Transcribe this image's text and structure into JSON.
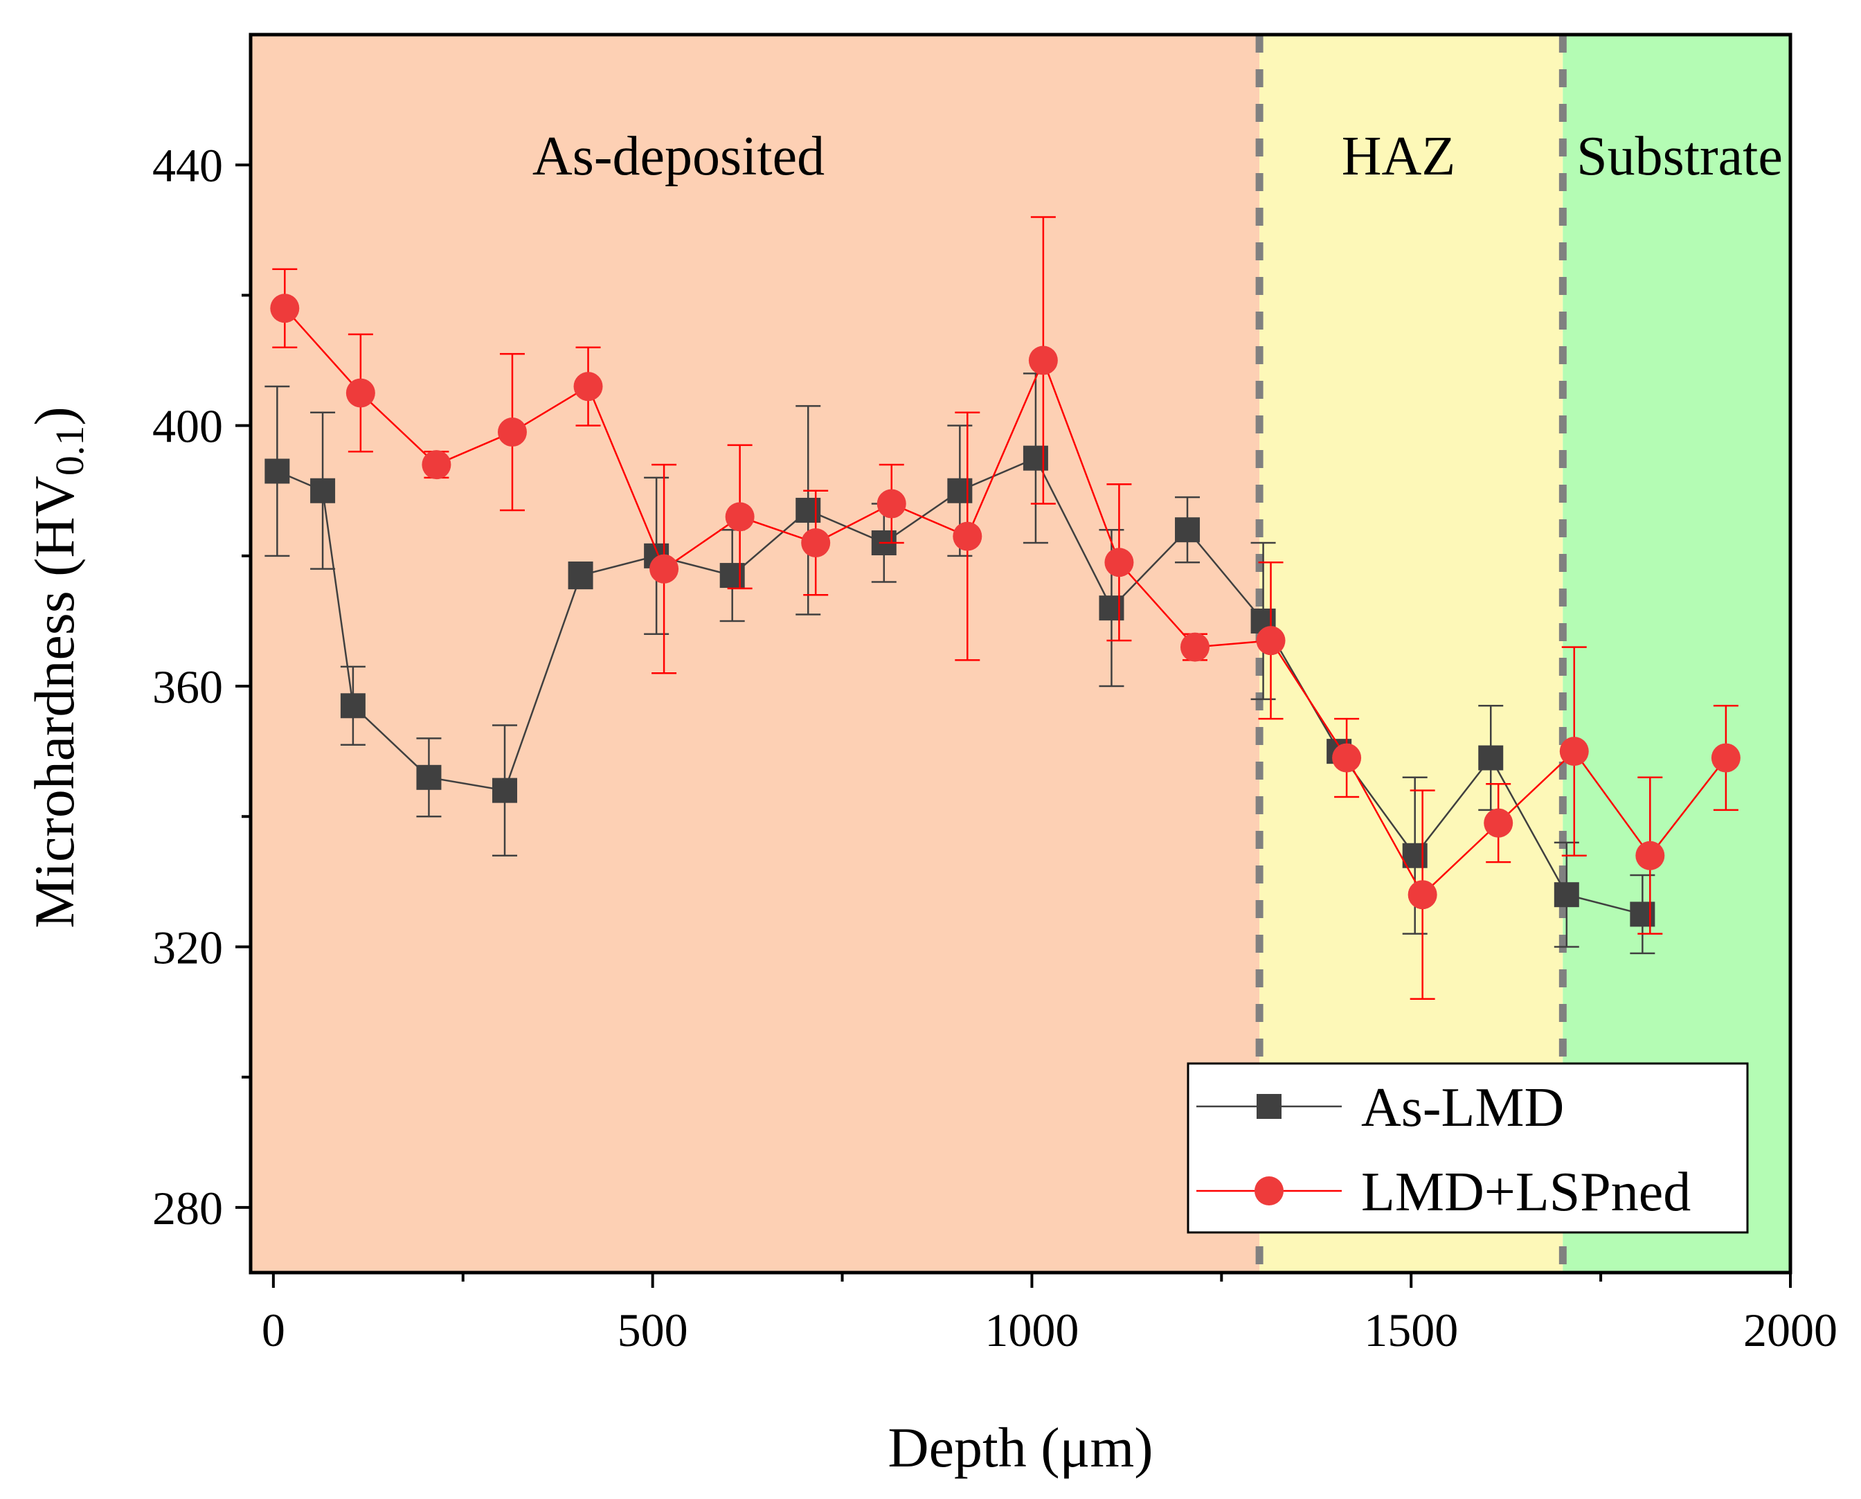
{
  "chart_data": {
    "type": "line",
    "xlabel": "Depth (μm)",
    "ylabel": {
      "main": "Microhardness (HV",
      "subscript": "0.1",
      "close": ")"
    },
    "xlim": [
      -30,
      2000
    ],
    "ylim": [
      270,
      460
    ],
    "x_ticks": [
      0,
      500,
      1000,
      1500,
      2000
    ],
    "x_minor_ticks": [
      250,
      750,
      1250,
      1750
    ],
    "y_ticks": [
      280,
      320,
      360,
      400,
      440
    ],
    "y_minor_ticks": [
      300,
      340,
      380,
      420
    ],
    "regions": [
      {
        "label": "As-deposited",
        "from": -30,
        "to": 1300,
        "color": "#fdd0b4"
      },
      {
        "label": "HAZ",
        "from": 1300,
        "to": 1700,
        "color": "#fdf8b8"
      },
      {
        "label": "Substrate",
        "from": 1700,
        "to": 2000,
        "color": "#b4fcb4"
      }
    ],
    "boundaries": [
      1300,
      1700
    ],
    "boundary_color": "#808080",
    "series": [
      {
        "name": "As-LMD",
        "marker": "square",
        "color": "#404040",
        "x": [
          5,
          65,
          105,
          205,
          305,
          405,
          505,
          605,
          705,
          805,
          905,
          1005,
          1105,
          1205,
          1305,
          1405,
          1505,
          1605,
          1705,
          1805
        ],
        "y": [
          393,
          390,
          357,
          346,
          344,
          377,
          380,
          377,
          387,
          382,
          390,
          395,
          372,
          384,
          370,
          350,
          334,
          349,
          328,
          325
        ],
        "err": [
          13,
          12,
          6,
          6,
          10,
          2,
          12,
          7,
          16,
          6,
          10,
          13,
          12,
          5,
          12,
          0,
          12,
          8,
          8,
          6
        ]
      },
      {
        "name": "LMD+LSPned",
        "marker": "circle",
        "color": "#ff0000",
        "fill": "#ee3b3b",
        "x": [
          15,
          115,
          215,
          315,
          415,
          515,
          615,
          715,
          815,
          915,
          1015,
          1115,
          1215,
          1315,
          1415,
          1515,
          1615,
          1715,
          1815,
          1915
        ],
        "y": [
          418,
          405,
          394,
          399,
          406,
          378,
          386,
          382,
          388,
          383,
          410,
          379,
          366,
          367,
          349,
          328,
          339,
          350,
          334,
          349
        ],
        "err": [
          6,
          9,
          2,
          12,
          6,
          16,
          11,
          8,
          6,
          19,
          22,
          12,
          2,
          12,
          6,
          16,
          6,
          16,
          12,
          8
        ]
      }
    ]
  }
}
